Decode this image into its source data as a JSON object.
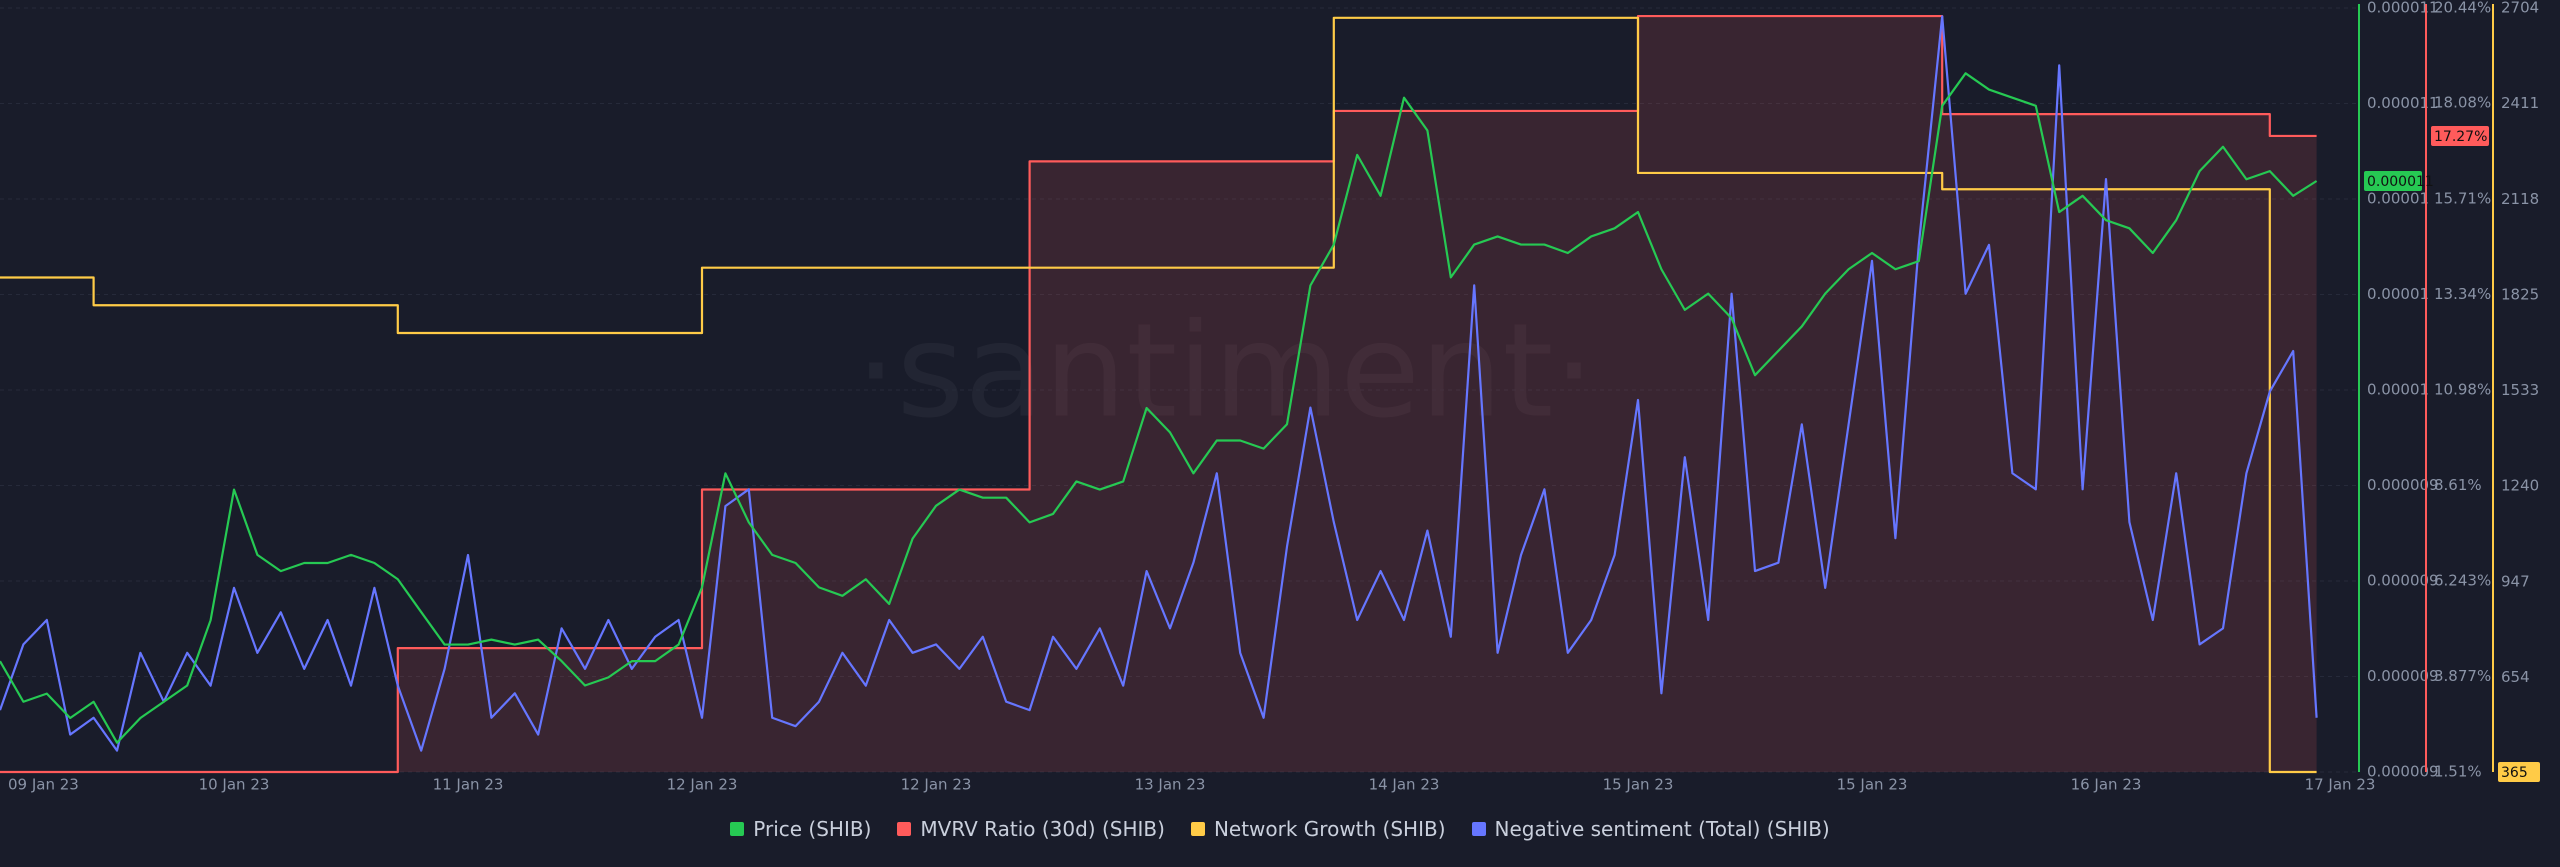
{
  "chart_data": {
    "type": "line",
    "watermark": "·santiment·",
    "xlim": [
      0,
      100
    ],
    "xticks": [
      {
        "value": 0,
        "label": "09 Jan 23"
      },
      {
        "value": 10,
        "label": "10 Jan 23"
      },
      {
        "value": 20,
        "label": "11 Jan 23"
      },
      {
        "value": 30,
        "label": "12 Jan 23"
      },
      {
        "value": 40,
        "label": "12 Jan 23"
      },
      {
        "value": 50,
        "label": "13 Jan 23"
      },
      {
        "value": 60,
        "label": "14 Jan 23"
      },
      {
        "value": 70,
        "label": "15 Jan 23"
      },
      {
        "value": 80,
        "label": "15 Jan 23"
      },
      {
        "value": 90,
        "label": "16 Jan 23"
      },
      {
        "value": 100,
        "label": "17 Jan 23"
      }
    ],
    "ylim": [
      8.51e-06,
      1.1142e-05
    ],
    "yticks": [
      {
        "value": 8.51e-06,
        "label": "0.000009"
      },
      {
        "value": 8.839e-06,
        "label": "0.000009"
      },
      {
        "value": 9.168e-06,
        "label": "0.000009"
      },
      {
        "value": 9.497e-06,
        "label": "0.000009"
      },
      {
        "value": 9.826e-06,
        "label": "0.00001"
      },
      {
        "value": 1.0155e-05,
        "label": "0.00001"
      },
      {
        "value": 1.0484e-05,
        "label": "0.00001"
      },
      {
        "value": 1.0813e-05,
        "label": "0.000011"
      },
      {
        "value": 1.1142e-05,
        "label": "0.000011"
      }
    ],
    "y2lim": [
      1.51,
      20.44
    ],
    "y2ticks": [
      {
        "value": 1.51,
        "label": "1.51%"
      },
      {
        "value": 3.877,
        "label": "3.877%"
      },
      {
        "value": 6.243,
        "label": "6.243%"
      },
      {
        "value": 8.61,
        "label": "8.61%"
      },
      {
        "value": 10.98,
        "label": "10.98%"
      },
      {
        "value": 13.34,
        "label": "13.34%"
      },
      {
        "value": 15.71,
        "label": "15.71%"
      },
      {
        "value": 18.08,
        "label": "18.08%"
      },
      {
        "value": 20.44,
        "label": "20.44%"
      }
    ],
    "y3lim": [
      365,
      2704
    ],
    "y3ticks": [
      365,
      654,
      947,
      1240,
      1533,
      1825,
      2118,
      2411,
      2704
    ],
    "y4lim": [
      0,
      100
    ],
    "grid": true,
    "series": [
      {
        "name": "Price (SHIB)",
        "color": "#26c953",
        "axis": "y",
        "step": false,
        "fill": false,
        "current_label": "0.000011",
        "values": [
          8.892e-06,
          8.752e-06,
          8.78e-06,
          8.696e-06,
          8.752e-06,
          8.611e-06,
          8.696e-06,
          8.752e-06,
          8.808e-06,
          9.033e-06,
          9.483e-06,
          9.258e-06,
          9.202e-06,
          9.23e-06,
          9.23e-06,
          9.258e-06,
          9.23e-06,
          9.174e-06,
          9.061e-06,
          8.949e-06,
          8.949e-06,
          8.966e-06,
          8.949e-06,
          8.966e-06,
          8.892e-06,
          8.808e-06,
          8.836e-06,
          8.892e-06,
          8.892e-06,
          8.949e-06,
          9.146e-06,
          9.539e-06,
          9.37e-06,
          9.258e-06,
          9.23e-06,
          9.146e-06,
          9.117e-06,
          9.174e-06,
          9.089e-06,
          9.314e-06,
          9.427e-06,
          9.483e-06,
          9.455e-06,
          9.455e-06,
          9.37e-06,
          9.399e-06,
          9.511e-06,
          9.483e-06,
          9.511e-06,
          9.764e-06,
          9.68e-06,
          9.539e-06,
          9.652e-06,
          9.652e-06,
          9.624e-06,
          9.708e-06,
          1.0186e-05,
          1.0327e-05,
          1.0636e-05,
          1.0495e-05,
          1.0833e-05,
          1.072e-05,
          1.0214e-05,
          1.0327e-05,
          1.0355e-05,
          1.0327e-05,
          1.0327e-05,
          1.0298e-05,
          1.0355e-05,
          1.0383e-05,
          1.0439e-05,
          1.0242e-05,
          1.0102e-05,
          1.0158e-05,
          1.0073e-05,
          9.877e-06,
          9.961e-06,
          1.0045e-05,
          1.0158e-05,
          1.0242e-05,
          1.0298e-05,
          1.0242e-05,
          1.027e-05,
          1.0805e-05,
          1.0917e-05,
          1.0861e-05,
          1.0833e-05,
          1.0805e-05,
          1.0439e-05,
          1.0495e-05,
          1.0411e-05,
          1.0383e-05,
          1.0298e-05,
          1.0411e-05,
          1.058e-05,
          1.0664e-05,
          1.0552e-05,
          1.058e-05,
          1.0495e-05,
          1.0546e-05
        ]
      },
      {
        "name": "MVRV Ratio (30d) (SHIB)",
        "color": "#ff5b5b",
        "axis": "y2",
        "step": true,
        "fill": true,
        "current_label": "17.27%",
        "values": [
          1.51,
          1.51,
          1.51,
          1.51,
          1.51,
          1.51,
          1.51,
          1.51,
          1.51,
          1.51,
          1.51,
          1.51,
          1.51,
          1.51,
          1.51,
          1.51,
          1.51,
          4.58,
          4.58,
          4.58,
          4.58,
          4.58,
          4.58,
          4.58,
          4.58,
          4.58,
          4.58,
          4.58,
          4.58,
          4.58,
          8.51,
          8.51,
          8.51,
          8.51,
          8.51,
          8.51,
          8.51,
          8.51,
          8.51,
          8.51,
          8.51,
          8.51,
          8.51,
          8.51,
          16.64,
          16.64,
          16.64,
          16.64,
          16.64,
          16.64,
          16.64,
          16.64,
          16.64,
          16.64,
          16.64,
          16.64,
          16.64,
          17.89,
          17.89,
          17.89,
          17.89,
          17.89,
          17.89,
          17.89,
          17.89,
          17.89,
          17.89,
          17.89,
          17.89,
          17.89,
          20.24,
          20.24,
          20.24,
          20.24,
          20.24,
          20.24,
          20.24,
          20.24,
          20.24,
          20.24,
          20.24,
          20.24,
          20.24,
          17.81,
          17.81,
          17.81,
          17.81,
          17.81,
          17.81,
          17.81,
          17.81,
          17.81,
          17.81,
          17.81,
          17.81,
          17.81,
          17.81,
          17.27,
          17.27,
          17.27
        ]
      },
      {
        "name": "Network Growth (SHIB)",
        "color": "#ffcb47",
        "axis": "y3",
        "step": true,
        "fill": false,
        "current_label": "365",
        "values": [
          1879,
          1879,
          1879,
          1879,
          1794,
          1794,
          1794,
          1794,
          1794,
          1794,
          1794,
          1794,
          1794,
          1794,
          1794,
          1794,
          1794,
          1709,
          1709,
          1709,
          1709,
          1709,
          1709,
          1709,
          1709,
          1709,
          1709,
          1709,
          1709,
          1709,
          1909,
          1909,
          1909,
          1909,
          1909,
          1909,
          1909,
          1909,
          1909,
          1909,
          1909,
          1909,
          1909,
          1909,
          1909,
          1909,
          1909,
          1909,
          1909,
          1909,
          1909,
          1909,
          1909,
          1909,
          1909,
          1909,
          1909,
          2674,
          2674,
          2674,
          2674,
          2674,
          2674,
          2674,
          2674,
          2674,
          2674,
          2674,
          2674,
          2674,
          2199,
          2199,
          2199,
          2199,
          2199,
          2199,
          2199,
          2199,
          2199,
          2199,
          2199,
          2199,
          2199,
          2149,
          2149,
          2149,
          2149,
          2149,
          2149,
          2149,
          2149,
          2149,
          2149,
          2149,
          2149,
          2149,
          2149,
          365,
          365,
          365
        ]
      },
      {
        "name": "Negative sentiment (Total) (SHIB)",
        "color": "#6676ff",
        "axis": "y4",
        "step": false,
        "fill": false,
        "values": [
          8.1,
          16.7,
          19.9,
          4.9,
          7.1,
          2.8,
          15.6,
          9.2,
          15.6,
          11.3,
          24.1,
          15.6,
          20.9,
          13.5,
          19.9,
          11.3,
          24.1,
          11.3,
          2.8,
          13.5,
          28.4,
          7.1,
          10.3,
          4.9,
          18.8,
          13.5,
          19.9,
          13.5,
          17.7,
          19.9,
          7.1,
          34.8,
          37.0,
          7.1,
          6.0,
          9.2,
          15.6,
          11.3,
          19.9,
          15.6,
          16.7,
          13.5,
          17.7,
          9.2,
          8.1,
          17.7,
          13.5,
          18.8,
          11.3,
          26.3,
          18.8,
          27.4,
          39.1,
          15.6,
          7.1,
          29.5,
          47.7,
          32.7,
          19.9,
          26.3,
          19.9,
          31.6,
          17.7,
          63.7,
          15.6,
          28.4,
          37.0,
          15.6,
          19.9,
          28.4,
          48.7,
          10.3,
          41.2,
          19.9,
          62.6,
          26.3,
          27.4,
          45.5,
          24.1,
          45.5,
          66.9,
          30.6,
          69.0,
          98.9,
          62.6,
          69.0,
          39.1,
          37.0,
          92.5,
          37.0,
          77.6,
          32.7,
          19.9,
          39.1,
          16.7,
          18.8,
          39.1,
          49.8,
          55.1,
          7.1
        ]
      }
    ]
  }
}
